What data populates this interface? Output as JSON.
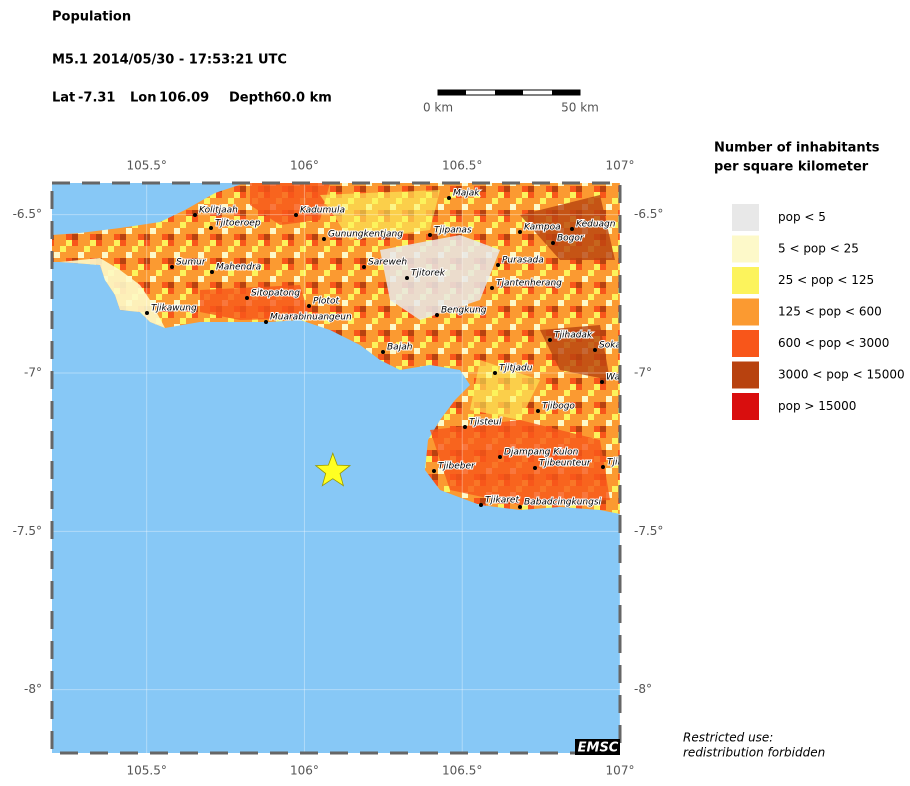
{
  "header": {
    "title": "Population",
    "event": "M5.1  2014/05/30 - 17:53:21 UTC",
    "lat_label": "Lat",
    "lat": -7.31,
    "lon_label": "Lon",
    "lon": 106.09,
    "depth_label": "Depth",
    "depth": "60.0 km"
  },
  "scale_bar": {
    "start": "0 km",
    "end": "50 km"
  },
  "map": {
    "lonlim": [
      105.2,
      107.0
    ],
    "latlim": [
      -8.2,
      -6.4
    ],
    "lonticks": [
      {
        "value": 105.5,
        "label": "105.5°"
      },
      {
        "value": 106,
        "label": "106°"
      },
      {
        "value": 106.5,
        "label": "106.5°"
      },
      {
        "value": 107,
        "label": "107°"
      }
    ],
    "latticks": [
      {
        "value": -6.5,
        "label": "-6.5°"
      },
      {
        "value": -7,
        "label": "-7°"
      },
      {
        "value": -7.5,
        "label": "-7.5°"
      },
      {
        "value": -8,
        "label": "-8°"
      }
    ],
    "sea_color": "#87c8f6",
    "epicenter_color": "#ffff22",
    "towns": [
      "Kolitjaah",
      "Tjitoeroep",
      "Kadumula",
      "Majak",
      "Gunungkentjang",
      "Tjipanas",
      "Kampoa",
      "Keduagn",
      "Bogor",
      "Sumur",
      "Mahendra",
      "Sareweh",
      "Tjitorek",
      "Purasada",
      "Tjantenherang",
      "Tjikawung",
      "Sitopatong",
      "Plotot",
      "Muarabinuangeun",
      "Bengkung",
      "Tjihadak",
      "Soka",
      "Bajah",
      "Tjitjadu",
      "Wa",
      "Tjibogo",
      "Tjisteul",
      "Djampang Kulon",
      "Tjibeber",
      "Tjibeunteur",
      "Tjir",
      "Tjikaret",
      "Babadcingkungsi"
    ],
    "credit": "EMSC"
  },
  "legend": {
    "title": [
      "Number of inhabitants",
      "per square kilometer"
    ],
    "entries": [
      {
        "label": "pop < 5",
        "color": "#e8e8e8"
      },
      {
        "label": "5 < pop < 25",
        "color": "#fdf9c9"
      },
      {
        "label": "25 < pop < 125",
        "color": "#fcf35c"
      },
      {
        "label": "125 < pop < 600",
        "color": "#fb9a31"
      },
      {
        "label": "600 < pop < 3000",
        "color": "#f8561a"
      },
      {
        "label": "3000 < pop < 15000",
        "color": "#b8420f"
      },
      {
        "label": "pop > 15000",
        "color": "#d90e0e"
      }
    ]
  },
  "notice": [
    "Restricted use:",
    "redistribution forbidden"
  ]
}
